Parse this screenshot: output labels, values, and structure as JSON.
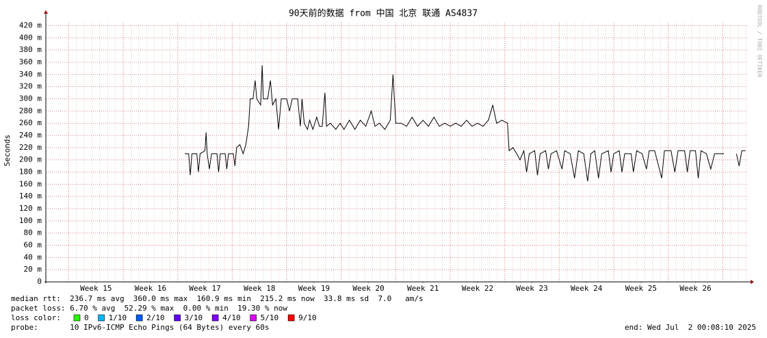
{
  "chart_data": {
    "type": "line",
    "title": "90天前的数据 from 中国 北京 联通 AS4837",
    "y_label": "Seconds",
    "watermark": "RRDTOOL / TOBI OETIKER",
    "xlim": [
      14.08,
      26.96
    ],
    "xticks": [
      {
        "value": 15,
        "label": "Week 15"
      },
      {
        "value": 16,
        "label": "Week 16"
      },
      {
        "value": 17,
        "label": "Week 17"
      },
      {
        "value": 18,
        "label": "Week 18"
      },
      {
        "value": 19,
        "label": "Week 19"
      },
      {
        "value": 20,
        "label": "Week 20"
      },
      {
        "value": 21,
        "label": "Week 21"
      },
      {
        "value": 22,
        "label": "Week 22"
      },
      {
        "value": 23,
        "label": "Week 23"
      },
      {
        "value": 24,
        "label": "Week 24"
      },
      {
        "value": 25,
        "label": "Week 25"
      },
      {
        "value": 26,
        "label": "Week 26"
      }
    ],
    "ylim": [
      0,
      0.425
    ],
    "yticks": [
      {
        "value": 0,
        "label": "0"
      },
      {
        "value": 0.02,
        "label": "20 m"
      },
      {
        "value": 0.04,
        "label": "40 m"
      },
      {
        "value": 0.06,
        "label": "60 m"
      },
      {
        "value": 0.08,
        "label": "80 m"
      },
      {
        "value": 0.1,
        "label": "100 m"
      },
      {
        "value": 0.12,
        "label": "120 m"
      },
      {
        "value": 0.14,
        "label": "140 m"
      },
      {
        "value": 0.16,
        "label": "160 m"
      },
      {
        "value": 0.18,
        "label": "180 m"
      },
      {
        "value": 0.2,
        "label": "200 m"
      },
      {
        "value": 0.22,
        "label": "220 m"
      },
      {
        "value": 0.24,
        "label": "240 m"
      },
      {
        "value": 0.26,
        "label": "260 m"
      },
      {
        "value": 0.28,
        "label": "280 m"
      },
      {
        "value": 0.3,
        "label": "300 m"
      },
      {
        "value": 0.32,
        "label": "320 m"
      },
      {
        "value": 0.34,
        "label": "340 m"
      },
      {
        "value": 0.36,
        "label": "360 m"
      },
      {
        "value": 0.38,
        "label": "380 m"
      },
      {
        "value": 0.4,
        "label": "400 m"
      },
      {
        "value": 0.42,
        "label": "420 m"
      }
    ],
    "grid": true,
    "x": [
      16.63,
      16.7,
      16.73,
      16.76,
      16.85,
      16.88,
      16.91,
      17.0,
      17.02,
      17.04,
      17.08,
      17.12,
      17.22,
      17.25,
      17.28,
      17.37,
      17.4,
      17.43,
      17.52,
      17.55,
      17.58,
      17.64,
      17.7,
      17.75,
      17.8,
      17.83,
      17.88,
      17.92,
      17.95,
      18.02,
      18.05,
      18.07,
      18.15,
      18.2,
      18.24,
      18.3,
      18.35,
      18.4,
      18.5,
      18.55,
      18.6,
      18.7,
      18.75,
      18.78,
      18.82,
      18.88,
      18.92,
      18.98,
      19.05,
      19.1,
      19.15,
      19.2,
      19.23,
      19.3,
      19.4,
      19.48,
      19.55,
      19.65,
      19.75,
      19.85,
      19.95,
      20.05,
      20.12,
      20.2,
      20.3,
      20.4,
      20.45,
      20.5,
      20.6,
      20.7,
      20.8,
      20.9,
      21.0,
      21.1,
      21.2,
      21.3,
      21.4,
      21.5,
      21.6,
      21.7,
      21.8,
      21.9,
      22.0,
      22.1,
      22.2,
      22.28,
      22.35,
      22.45,
      22.55,
      22.58,
      22.65,
      22.72,
      22.78,
      22.85,
      22.9,
      22.95,
      23.05,
      23.1,
      23.15,
      23.25,
      23.3,
      23.35,
      23.45,
      23.55,
      23.6,
      23.7,
      23.78,
      23.85,
      23.95,
      24.02,
      24.08,
      24.15,
      24.22,
      24.28,
      24.4,
      24.45,
      24.5,
      24.6,
      24.65,
      24.7,
      24.82,
      24.86,
      24.92,
      25.02,
      25.1,
      25.15,
      25.25,
      25.38,
      25.43,
      25.55,
      25.62,
      25.68,
      25.8,
      25.85,
      25.9,
      26.0,
      26.05,
      26.1,
      26.2,
      26.28,
      26.35,
      26.45,
      26.52,
      26.6,
      26.75,
      26.8,
      26.85,
      26.92
    ],
    "series": [
      {
        "name": "median rtt",
        "color": "#000000",
        "values": [
          0.21,
          0.21,
          0.175,
          0.21,
          0.21,
          0.18,
          0.21,
          0.215,
          0.245,
          0.21,
          0.185,
          0.21,
          0.21,
          0.18,
          0.21,
          0.21,
          0.185,
          0.21,
          0.21,
          0.19,
          0.22,
          0.225,
          0.21,
          0.225,
          0.255,
          0.3,
          0.3,
          0.33,
          0.3,
          0.29,
          0.355,
          0.3,
          0.3,
          0.33,
          0.29,
          0.3,
          0.25,
          0.3,
          0.3,
          0.28,
          0.3,
          0.3,
          0.255,
          0.3,
          0.26,
          0.25,
          0.265,
          0.25,
          0.27,
          0.255,
          0.255,
          0.31,
          0.255,
          0.26,
          0.25,
          0.26,
          0.25,
          0.265,
          0.25,
          0.265,
          0.255,
          0.28,
          0.255,
          0.26,
          0.25,
          0.265,
          0.34,
          0.26,
          0.26,
          0.255,
          0.27,
          0.255,
          0.265,
          0.255,
          0.27,
          0.255,
          0.26,
          0.255,
          0.26,
          0.255,
          0.265,
          0.255,
          0.26,
          0.255,
          0.265,
          0.29,
          0.26,
          0.265,
          0.26,
          0.215,
          0.22,
          0.21,
          0.2,
          0.215,
          0.18,
          0.21,
          0.215,
          0.175,
          0.21,
          0.215,
          0.185,
          0.21,
          0.215,
          0.185,
          0.215,
          0.21,
          0.17,
          0.215,
          0.21,
          0.165,
          0.21,
          0.215,
          0.17,
          0.21,
          0.215,
          0.18,
          0.21,
          0.215,
          0.18,
          0.21,
          0.21,
          0.18,
          0.215,
          0.21,
          0.185,
          0.215,
          0.215,
          0.17,
          0.215,
          0.215,
          0.18,
          0.215,
          0.215,
          0.18,
          0.215,
          0.215,
          0.17,
          0.215,
          0.21,
          0.185,
          0.21,
          0.21,
          0.21,
          null,
          0.21,
          0.19,
          0.215,
          0.215
        ]
      }
    ],
    "stats_lines": [
      "median rtt:  236.7 ms avg  360.0 ms max  160.9 ms min  215.2 ms now  33.8 ms sd  7.0   am/s",
      "packet loss: 6.70 % avg  52.29 % max  0.00 % min  19.30 % now"
    ],
    "loss_color_label": "loss color:",
    "loss_colors": [
      {
        "name": "0",
        "color": "#26ff00"
      },
      {
        "name": "1/10",
        "color": "#00b8ff"
      },
      {
        "name": "2/10",
        "color": "#0059ff"
      },
      {
        "name": "3/10",
        "color": "#5e00ff"
      },
      {
        "name": "4/10",
        "color": "#7e00ff"
      },
      {
        "name": "5/10",
        "color": "#dd00ff"
      },
      {
        "name": "9/10",
        "color": "#ff0000"
      }
    ],
    "probe": "probe:       10 IPv6-ICMP Echo Pings (64 Bytes) every 60s",
    "end": "end: Wed Jul  2 00:08:10 2025"
  }
}
